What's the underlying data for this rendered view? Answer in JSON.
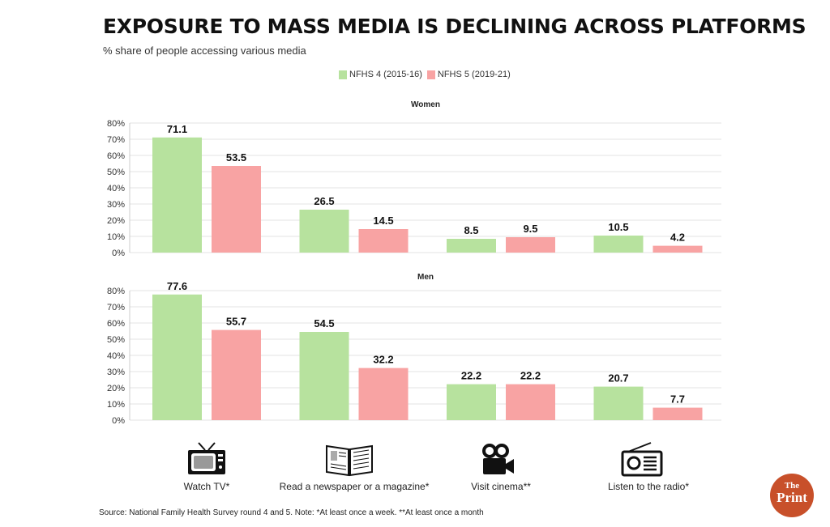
{
  "title": "EXPOSURE TO MASS MEDIA IS DECLINING ACROSS PLATFORMS",
  "subtitle": "% share of  people accessing various media",
  "source": "Source: National Family Health Survey round 4 and 5.    Note: *At least once a week. **At least once a month",
  "logo_text": "The Print",
  "colors": {
    "nfhs4": "#b7e29e",
    "nfhs5": "#f8a3a3",
    "logo": "#c8502a"
  },
  "categories": [
    {
      "label": "Watch TV*",
      "icon": "tv-icon"
    },
    {
      "label": "Read a newspaper or a magazine*",
      "icon": "newspaper-icon"
    },
    {
      "label": "Visit cinema**",
      "icon": "movie-camera-icon"
    },
    {
      "label": "Listen to the radio*",
      "icon": "radio-icon"
    }
  ],
  "chart_data": [
    {
      "type": "bar",
      "title": "Women",
      "categories": [
        "Watch TV*",
        "Read a newspaper or a magazine*",
        "Visit cinema**",
        "Listen to the radio*"
      ],
      "series": [
        {
          "name": "NFHS 4 (2015-16)",
          "values": [
            71.1,
            26.5,
            8.5,
            10.5
          ]
        },
        {
          "name": "NFHS 5 (2019-21)",
          "values": [
            53.5,
            14.5,
            9.5,
            4.2
          ]
        }
      ],
      "ylim": [
        0,
        80
      ],
      "yticks": [
        "0%",
        "10%",
        "20%",
        "30%",
        "40%",
        "50%",
        "60%",
        "70%",
        "80%"
      ],
      "grid": true,
      "legend": "top-center"
    },
    {
      "type": "bar",
      "title": "Men",
      "categories": [
        "Watch TV*",
        "Read a newspaper or a magazine*",
        "Visit cinema**",
        "Listen to the radio*"
      ],
      "series": [
        {
          "name": "NFHS 4 (2015-16)",
          "values": [
            77.6,
            54.5,
            22.2,
            20.7
          ]
        },
        {
          "name": "NFHS 5 (2019-21)",
          "values": [
            55.7,
            32.2,
            22.2,
            7.7
          ]
        }
      ],
      "ylim": [
        0,
        80
      ],
      "yticks": [
        "0%",
        "10%",
        "20%",
        "30%",
        "40%",
        "50%",
        "60%",
        "70%",
        "80%"
      ],
      "grid": true,
      "legend": "top-center"
    }
  ]
}
